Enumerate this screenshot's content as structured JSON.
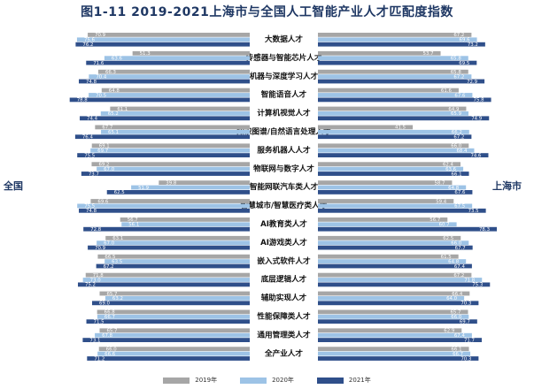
{
  "title": "图1-11    2019-2021上海市与全国人工智能产业人才匹配度指数",
  "left_label": "全国",
  "right_label": "上海市",
  "colors": {
    "y2019": "#a6a6a6",
    "y2020": "#9dc3e6",
    "y2021": "#2f4f8a"
  },
  "chart_data": {
    "type": "bar",
    "orientation": "horizontal-butterfly",
    "title": "2019-2021上海市与全国人工智能产业人才匹配度指数",
    "categories": [
      "大数据人才",
      "传感器与智能芯片人才",
      "机器与深度学习人才",
      "智能语音人才",
      "计算机视觉人才",
      "知识图谱/自然语言处理人才",
      "服务机器人人才",
      "物联网与数字人才",
      "智能网联汽车类人才",
      "智慧城市/智慧医疗类人才",
      "AI教育类人才",
      "AI游戏类人才",
      "嵌入式软件人才",
      "底层逻辑人才",
      "辅助实现人才",
      "性能保障类人才",
      "通用管理类人才",
      "全产业人才"
    ],
    "groups": [
      {
        "name": "全国",
        "series": [
          {
            "name": "2019年",
            "values": [
              70.9,
              51.3,
              66.3,
              64.8,
              61.1,
              67.7,
              69.1,
              69.2,
              39.8,
              69.6,
              56.7,
              63.1,
              66.5,
              71.8,
              65.7,
              66.8,
              65.7,
              66.0
            ]
          },
          {
            "name": "2020年",
            "values": [
              75.6,
              63.6,
              70.4,
              70.5,
              65.2,
              65.1,
              69.7,
              67.0,
              51.9,
              75.5,
              56.1,
              67.0,
              63.5,
              73.0,
              63.2,
              66.7,
              67.8,
              66.6
            ]
          },
          {
            "name": "2021年",
            "values": [
              76.2,
              71.6,
              74.8,
              78.8,
              74.4,
              76.4,
              75.5,
              73.7,
              62.5,
              74.8,
              72.8,
              70.9,
              67.2,
              75.2,
              69.0,
              71.5,
              73.1,
              71.2
            ]
          }
        ]
      },
      {
        "name": "上海市",
        "series": [
          {
            "name": "2019年",
            "values": [
              67.2,
              53.7,
              65.8,
              61.6,
              64.9,
              41.5,
              66.0,
              62.4,
              58.7,
              59.4,
              56.7,
              62.5,
              61.5,
              67.2,
              66.4,
              65.7,
              62.9,
              66.1
            ]
          },
          {
            "name": "2020年",
            "values": [
              69.6,
              65.8,
              67.2,
              67.6,
              65.9,
              66.2,
              68.4,
              63.6,
              64.8,
              67.5,
              60.7,
              66.0,
              64.8,
              71.8,
              64.0,
              66.0,
              67.4,
              66.7
            ]
          },
          {
            "name": "2021年",
            "values": [
              73.2,
              69.5,
              72.9,
              75.8,
              74.9,
              67.2,
              74.6,
              66.1,
              67.6,
              73.5,
              78.3,
              67.7,
              67.4,
              75.3,
              70.3,
              69.7,
              71.7,
              70.3
            ]
          }
        ]
      }
    ],
    "legend": [
      "2019年",
      "2020年",
      "2021年"
    ],
    "legend_position": "bottom",
    "xlim": [
      0,
      100
    ],
    "grid": false
  }
}
